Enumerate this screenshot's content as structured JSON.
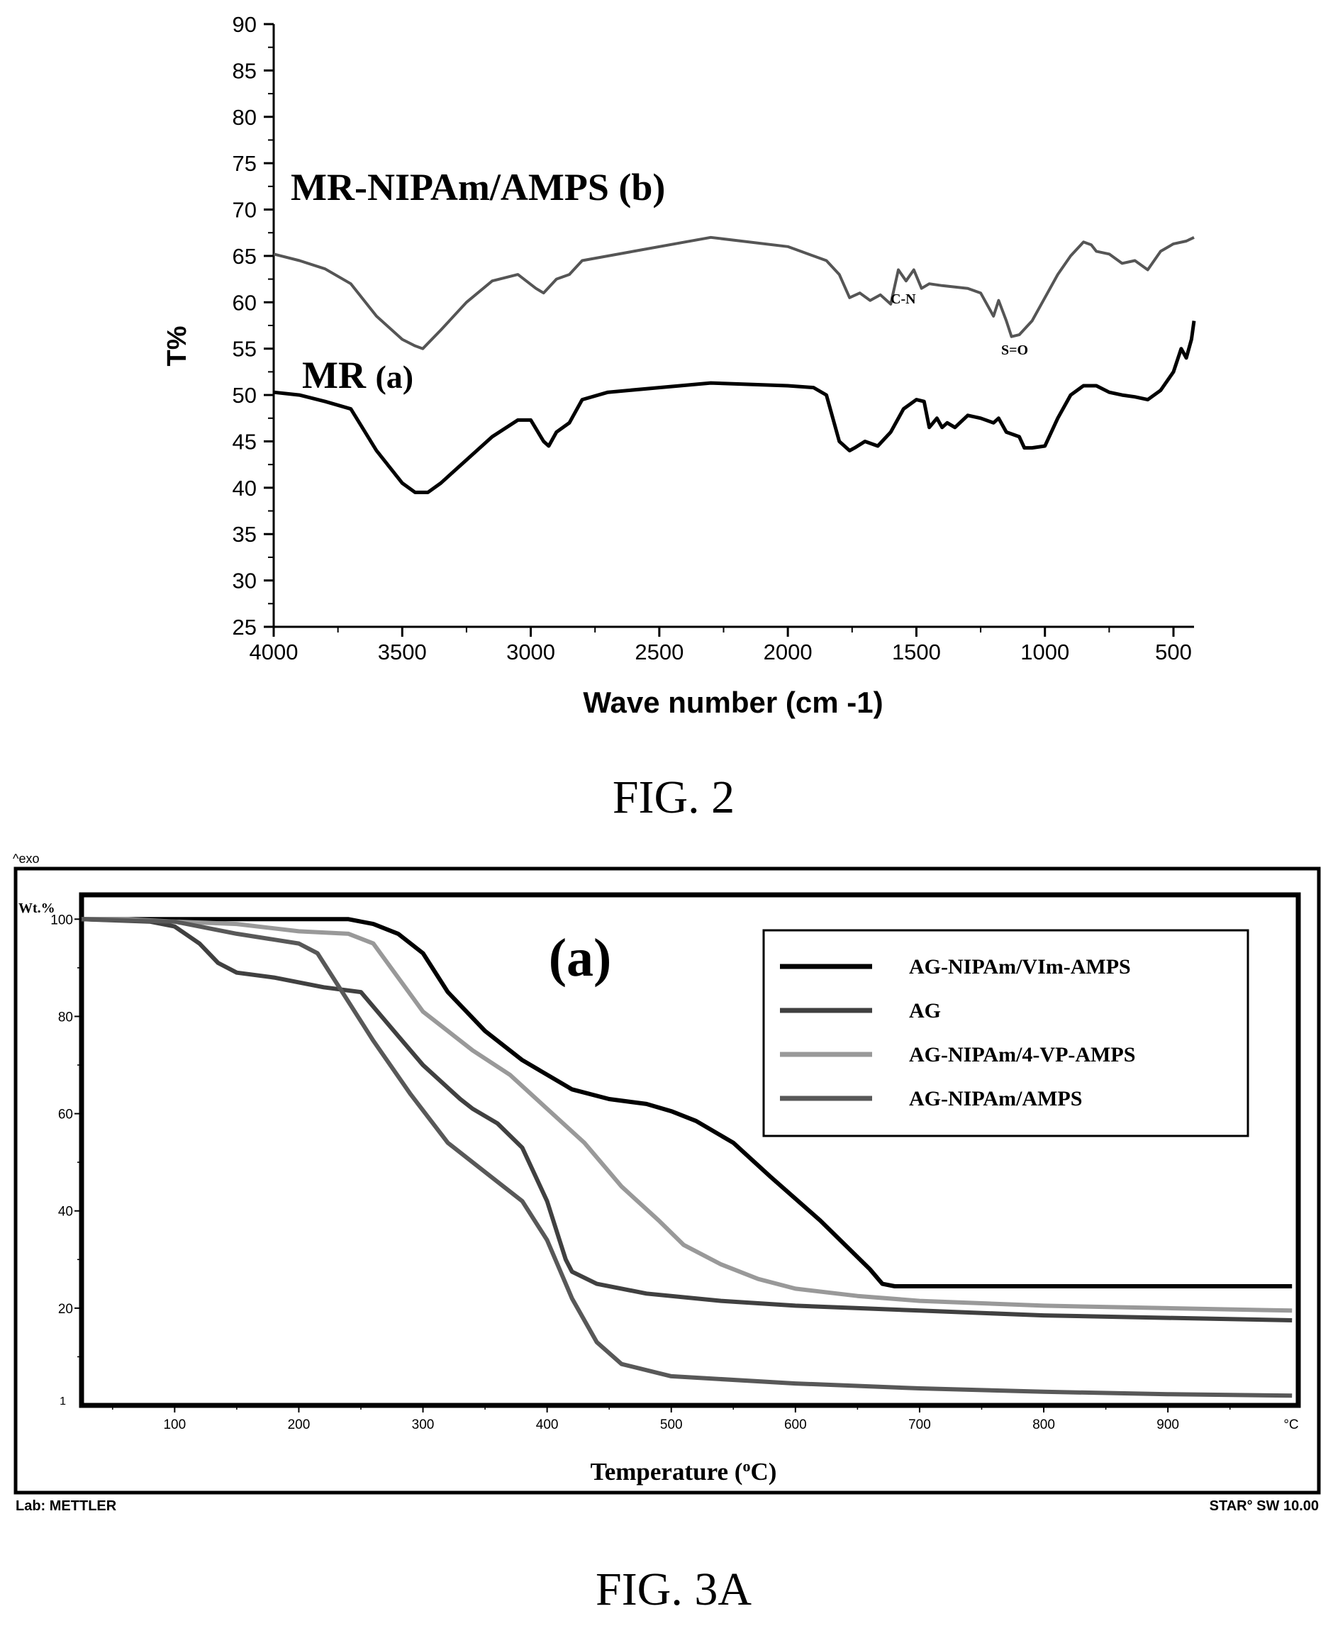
{
  "fig2": {
    "caption": "FIG. 2",
    "chart_data": {
      "type": "line",
      "title": "",
      "xlabel": "Wave number (cm -1)",
      "ylabel": "T%",
      "xlim": [
        4000,
        420
      ],
      "ylim": [
        25,
        90
      ],
      "x_ticks": [
        "4000",
        "3500",
        "3000",
        "2500",
        "2000",
        "1500",
        "1000",
        "500"
      ],
      "y_ticks": [
        "25",
        "30",
        "35",
        "40",
        "45",
        "50",
        "55",
        "60",
        "65",
        "70",
        "75",
        "80",
        "85",
        "90"
      ],
      "grid": false,
      "annotations": [
        {
          "text": "C-N",
          "x": 1470,
          "y": 60.5
        },
        {
          "text": "S=O",
          "x": 1070,
          "y": 55.5
        }
      ],
      "series": [
        {
          "name": "MR-NIPAm/AMPS (b)",
          "label_parts": [
            "MR-NIPAm/AMPS",
            "(b)"
          ],
          "color": "#555555",
          "x": [
            4000,
            3900,
            3800,
            3700,
            3600,
            3500,
            3450,
            3420,
            3350,
            3250,
            3150,
            3050,
            2980,
            2950,
            2900,
            2850,
            2800,
            2600,
            2400,
            2300,
            2000,
            1950,
            1850,
            1800,
            1760,
            1720,
            1680,
            1640,
            1600,
            1570,
            1540,
            1510,
            1480,
            1450,
            1400,
            1300,
            1250,
            1200,
            1180,
            1150,
            1130,
            1100,
            1050,
            1000,
            950,
            900,
            850,
            820,
            800,
            750,
            700,
            650,
            600,
            550,
            500,
            450,
            420
          ],
          "y": [
            65.2,
            64.5,
            63.6,
            62.0,
            58.5,
            56.0,
            55.3,
            55.0,
            57.0,
            60.0,
            62.3,
            63.0,
            61.5,
            61.0,
            62.5,
            63.0,
            64.5,
            65.5,
            66.5,
            67.0,
            66.0,
            65.5,
            64.5,
            63.0,
            60.5,
            61.0,
            60.2,
            60.8,
            59.8,
            63.5,
            62.3,
            63.5,
            61.5,
            62.0,
            61.8,
            61.5,
            61.0,
            58.5,
            60.2,
            58.0,
            56.3,
            56.5,
            58.0,
            60.5,
            63.0,
            65.0,
            66.5,
            66.2,
            65.5,
            65.2,
            64.2,
            64.5,
            63.5,
            65.5,
            66.3,
            66.6,
            67.0
          ]
        },
        {
          "name": "MR (a)",
          "label_parts": [
            "MR",
            "(a)"
          ],
          "color": "#000000",
          "x": [
            4000,
            3900,
            3800,
            3700,
            3600,
            3500,
            3450,
            3400,
            3350,
            3250,
            3150,
            3050,
            3000,
            2950,
            2930,
            2900,
            2850,
            2800,
            2700,
            2500,
            2300,
            2000,
            1900,
            1850,
            1800,
            1760,
            1740,
            1700,
            1650,
            1600,
            1550,
            1500,
            1470,
            1450,
            1420,
            1400,
            1380,
            1350,
            1300,
            1250,
            1200,
            1180,
            1150,
            1100,
            1080,
            1050,
            1000,
            950,
            900,
            850,
            800,
            750,
            700,
            650,
            600,
            550,
            500,
            470,
            450,
            430,
            420
          ],
          "y": [
            50.3,
            50.0,
            49.3,
            48.5,
            44.0,
            40.5,
            39.5,
            39.5,
            40.5,
            43.0,
            45.5,
            47.3,
            47.3,
            45.0,
            44.5,
            46.0,
            47.0,
            49.5,
            50.3,
            50.8,
            51.3,
            51.0,
            50.8,
            50.0,
            45.0,
            44.0,
            44.3,
            45.0,
            44.5,
            46.0,
            48.5,
            49.5,
            49.3,
            46.5,
            47.5,
            46.5,
            47.0,
            46.5,
            47.8,
            47.5,
            47.0,
            47.5,
            46.0,
            45.5,
            44.3,
            44.3,
            44.5,
            47.5,
            50.0,
            51.0,
            51.0,
            50.3,
            50.0,
            49.8,
            49.5,
            50.5,
            52.5,
            55.0,
            54.0,
            56.0,
            58.0
          ]
        }
      ]
    }
  },
  "fig3a": {
    "caption": "FIG. 3A",
    "panel_label": "(a)",
    "corner_label": "^exo",
    "bottom_left": "Lab: METTLER",
    "bottom_right": "STAR° SW 10.00",
    "chart_data": {
      "type": "line",
      "title": "",
      "xlabel": "Temperature (°C)",
      "xlabel_parts": [
        "Temperature (",
        "o",
        "C)"
      ],
      "ylabel": "Wt.%",
      "xlim": [
        25,
        1005
      ],
      "ylim": [
        0,
        105
      ],
      "x_ticks": [
        "100",
        "200",
        "300",
        "400",
        "500",
        "600",
        "700",
        "800",
        "900"
      ],
      "x_unit_tick": "°C",
      "y_ticks": [
        "100",
        "80",
        "60",
        "40",
        "20"
      ],
      "y_bottom_tick": "1",
      "grid": false,
      "legend_position": "top-right",
      "series": [
        {
          "name": "AG-NIPAm/VIm-AMPS",
          "color": "#000000",
          "x": [
            25,
            100,
            200,
            240,
            260,
            280,
            300,
            320,
            350,
            380,
            400,
            420,
            450,
            480,
            500,
            520,
            550,
            580,
            620,
            660,
            670,
            680,
            700,
            800,
            1000
          ],
          "y": [
            100,
            100,
            100,
            100,
            99,
            97,
            93,
            85,
            77,
            71,
            68,
            65,
            63,
            62,
            60.5,
            58.5,
            54,
            47,
            38,
            28,
            25,
            24.5,
            24.5,
            24.5,
            24.5
          ]
        },
        {
          "name": "AG",
          "color": "#404040",
          "x": [
            25,
            80,
            100,
            120,
            135,
            150,
            180,
            220,
            250,
            280,
            300,
            330,
            340,
            360,
            380,
            400,
            410,
            415,
            420,
            440,
            480,
            540,
            600,
            700,
            800,
            900,
            1000
          ],
          "y": [
            100,
            99.5,
            98.5,
            95,
            91,
            89,
            88,
            86,
            85,
            76,
            70,
            63,
            61,
            58,
            53,
            42,
            34,
            30,
            27.5,
            25,
            23,
            21.5,
            20.5,
            19.5,
            18.5,
            18,
            17.5
          ]
        },
        {
          "name": "AG-NIPAm/4-VP-AMPS",
          "color": "#999999",
          "x": [
            25,
            60,
            100,
            150,
            200,
            240,
            260,
            280,
            300,
            320,
            340,
            370,
            400,
            430,
            460,
            490,
            510,
            540,
            570,
            600,
            650,
            700,
            800,
            900,
            1000
          ],
          "y": [
            100,
            100,
            99.5,
            99,
            97.5,
            97,
            95,
            88,
            81,
            77,
            73,
            68,
            61,
            54,
            45,
            38,
            33,
            29,
            26,
            24,
            22.5,
            21.5,
            20.5,
            20,
            19.5
          ]
        },
        {
          "name": "AG-NIPAm/AMPS",
          "color": "#585858",
          "x": [
            25,
            100,
            150,
            200,
            215,
            230,
            260,
            290,
            320,
            345,
            360,
            380,
            400,
            420,
            440,
            460,
            500,
            600,
            700,
            800,
            900,
            1000
          ],
          "y": [
            100,
            99.5,
            97,
            95,
            93,
            87,
            75,
            64,
            54,
            49,
            46,
            42,
            34,
            22,
            13,
            8.5,
            6,
            4.5,
            3.5,
            2.8,
            2.3,
            2
          ]
        }
      ]
    }
  }
}
